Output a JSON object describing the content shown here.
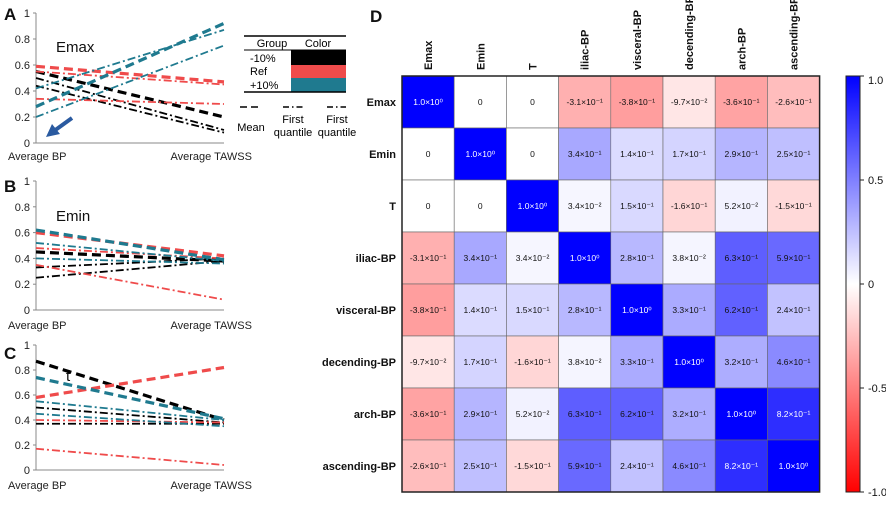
{
  "panel_labels": {
    "A": "A",
    "B": "B",
    "C": "C",
    "D": "D"
  },
  "line_x_labels": [
    "Average BP",
    "Average TAWSS"
  ],
  "line_y_ticks": [
    "0",
    "0.2",
    "0.4",
    "0.6",
    "0.8",
    "1"
  ],
  "legend": {
    "group_header": "Group",
    "color_header": "Color",
    "groups": [
      "-10%",
      "Ref",
      "+10%"
    ],
    "colors": [
      "#000000",
      "#ef4b4b",
      "#1f7a8f"
    ],
    "styles": [
      "Mean",
      "First quantile",
      "First quantile"
    ],
    "style_lines": [
      [
        "Mean"
      ],
      [
        "First",
        "quantile"
      ],
      [
        "First",
        "quantile"
      ]
    ]
  },
  "colors": {
    "black": "#000000",
    "red": "#ef4b4b",
    "teal": "#1f7a8f",
    "arrow": "#2a5aa0"
  },
  "chart_data": [
    {
      "type": "line",
      "panel": "A",
      "title": "Emax",
      "x": [
        "Average BP",
        "Average TAWSS"
      ],
      "ylim": [
        0,
        1
      ],
      "series": [
        {
          "name": "-10% mean",
          "group": "-10%",
          "style": "mean",
          "values": [
            0.55,
            0.2
          ]
        },
        {
          "name": "-10% q1",
          "group": "-10%",
          "style": "dashdot",
          "values": [
            0.5,
            0.1
          ]
        },
        {
          "name": "-10% q2",
          "group": "-10%",
          "style": "dashdot",
          "values": [
            0.44,
            0.08
          ]
        },
        {
          "name": "Ref mean",
          "group": "Ref",
          "style": "mean",
          "values": [
            0.59,
            0.47
          ]
        },
        {
          "name": "Ref q1",
          "group": "Ref",
          "style": "dashdot",
          "values": [
            0.55,
            0.45
          ]
        },
        {
          "name": "Ref q2",
          "group": "Ref",
          "style": "dashdot",
          "values": [
            0.34,
            0.3
          ]
        },
        {
          "name": "+10% mean",
          "group": "+10%",
          "style": "mean",
          "values": [
            0.28,
            0.92
          ]
        },
        {
          "name": "+10% q1",
          "group": "+10%",
          "style": "dashdot",
          "values": [
            0.42,
            0.87
          ]
        },
        {
          "name": "+10% q2",
          "group": "+10%",
          "style": "dashdot",
          "values": [
            0.2,
            0.75
          ]
        }
      ]
    },
    {
      "type": "line",
      "panel": "B",
      "title": "Emin",
      "x": [
        "Average BP",
        "Average TAWSS"
      ],
      "ylim": [
        0,
        1
      ],
      "series": [
        {
          "name": "-10% mean",
          "group": "-10%",
          "style": "mean",
          "values": [
            0.45,
            0.38
          ]
        },
        {
          "name": "-10% q1",
          "group": "-10%",
          "style": "dashdot",
          "values": [
            0.33,
            0.4
          ]
        },
        {
          "name": "-10% q2",
          "group": "-10%",
          "style": "dashdot",
          "values": [
            0.25,
            0.38
          ]
        },
        {
          "name": "Ref mean",
          "group": "Ref",
          "style": "mean",
          "values": [
            0.6,
            0.42
          ]
        },
        {
          "name": "Ref q1",
          "group": "Ref",
          "style": "dashdot",
          "values": [
            0.48,
            0.4
          ]
        },
        {
          "name": "Ref q2",
          "group": "Ref",
          "style": "dashdot",
          "values": [
            0.35,
            0.08
          ]
        },
        {
          "name": "+10% mean",
          "group": "+10%",
          "style": "mean",
          "values": [
            0.62,
            0.39
          ]
        },
        {
          "name": "+10% q1",
          "group": "+10%",
          "style": "dashdot",
          "values": [
            0.52,
            0.38
          ]
        },
        {
          "name": "+10% q2",
          "group": "+10%",
          "style": "dashdot",
          "values": [
            0.4,
            0.36
          ]
        }
      ]
    },
    {
      "type": "line",
      "panel": "C",
      "title": "t",
      "x": [
        "Average BP",
        "Average TAWSS"
      ],
      "ylim": [
        0,
        1
      ],
      "series": [
        {
          "name": "-10% mean",
          "group": "-10%",
          "style": "mean",
          "values": [
            0.87,
            0.4
          ]
        },
        {
          "name": "-10% q1",
          "group": "-10%",
          "style": "dashdot",
          "values": [
            0.5,
            0.38
          ]
        },
        {
          "name": "-10% q2",
          "group": "-10%",
          "style": "dashdot",
          "values": [
            0.37,
            0.37
          ]
        },
        {
          "name": "Ref mean",
          "group": "Ref",
          "style": "mean",
          "values": [
            0.58,
            0.82
          ]
        },
        {
          "name": "Ref q1",
          "group": "Ref",
          "style": "dashdot",
          "values": [
            0.4,
            0.38
          ]
        },
        {
          "name": "Ref q2",
          "group": "Ref",
          "style": "dashdot",
          "values": [
            0.17,
            0.04
          ]
        },
        {
          "name": "+10% mean",
          "group": "+10%",
          "style": "mean",
          "values": [
            0.74,
            0.41
          ]
        },
        {
          "name": "+10% q1",
          "group": "+10%",
          "style": "dashdot",
          "values": [
            0.55,
            0.4
          ]
        },
        {
          "name": "+10% q2",
          "group": "+10%",
          "style": "dashdot",
          "values": [
            0.45,
            0.35
          ]
        }
      ]
    },
    {
      "type": "heatmap",
      "panel": "D",
      "title": "",
      "rows": [
        "Emax",
        "Emin",
        "T",
        "iliac-BP",
        "visceral-BP",
        "decending-BP",
        "arch-BP",
        "ascending-BP"
      ],
      "columns": [
        "Emax",
        "Emin",
        "T",
        "iliac-BP",
        "visceral-BP",
        "decending-BP",
        "arch-BP",
        "ascending-BP"
      ],
      "values": [
        [
          1.0,
          0,
          0,
          -0.31,
          -0.38,
          -0.097,
          -0.36,
          -0.26
        ],
        [
          0,
          1.0,
          0,
          0.34,
          0.14,
          0.17,
          0.29,
          0.25
        ],
        [
          0,
          0,
          1.0,
          0.034,
          0.15,
          -0.16,
          0.052,
          -0.15
        ],
        [
          -0.31,
          0.34,
          0.034,
          1.0,
          0.28,
          0.038,
          0.63,
          0.59
        ],
        [
          -0.38,
          0.14,
          0.15,
          0.28,
          1.0,
          0.33,
          0.62,
          0.24
        ],
        [
          -0.097,
          0.17,
          -0.16,
          0.038,
          0.33,
          1.0,
          0.32,
          0.46
        ],
        [
          -0.36,
          0.29,
          0.052,
          0.63,
          0.62,
          0.32,
          1.0,
          0.82
        ],
        [
          -0.26,
          0.25,
          -0.15,
          0.59,
          0.24,
          0.46,
          0.82,
          1.0
        ]
      ],
      "labels": [
        [
          "1.0×10⁰",
          "0",
          "0",
          "-3.1×10⁻¹",
          "-3.8×10⁻¹",
          "-9.7×10⁻²",
          "-3.6×10⁻¹",
          "-2.6×10⁻¹"
        ],
        [
          "0",
          "1.0×10⁰",
          "0",
          "3.4×10⁻¹",
          "1.4×10⁻¹",
          "1.7×10⁻¹",
          "2.9×10⁻¹",
          "2.5×10⁻¹"
        ],
        [
          "0",
          "0",
          "1.0×10⁰",
          "3.4×10⁻²",
          "1.5×10⁻¹",
          "-1.6×10⁻¹",
          "5.2×10⁻²",
          "-1.5×10⁻¹"
        ],
        [
          "-3.1×10⁻¹",
          "3.4×10⁻¹",
          "3.4×10⁻²",
          "1.0×10⁰",
          "2.8×10⁻¹",
          "3.8×10⁻²",
          "6.3×10⁻¹",
          "5.9×10⁻¹"
        ],
        [
          "-3.8×10⁻¹",
          "1.4×10⁻¹",
          "1.5×10⁻¹",
          "2.8×10⁻¹",
          "1.0×10⁰",
          "3.3×10⁻¹",
          "6.2×10⁻¹",
          "2.4×10⁻¹"
        ],
        [
          "-9.7×10⁻²",
          "1.7×10⁻¹",
          "-1.6×10⁻¹",
          "3.8×10⁻²",
          "3.3×10⁻¹",
          "1.0×10⁰",
          "3.2×10⁻¹",
          "4.6×10⁻¹"
        ],
        [
          "-3.6×10⁻¹",
          "2.9×10⁻¹",
          "5.2×10⁻²",
          "6.3×10⁻¹",
          "6.2×10⁻¹",
          "3.2×10⁻¹",
          "1.0×10⁰",
          "8.2×10⁻¹"
        ],
        [
          "-2.6×10⁻¹",
          "2.5×10⁻¹",
          "-1.5×10⁻¹",
          "5.9×10⁻¹",
          "2.4×10⁻¹",
          "4.6×10⁻¹",
          "8.2×10⁻¹",
          "1.0×10⁰"
        ]
      ],
      "colorbar": {
        "range": [
          -1,
          1
        ],
        "ticks": [
          "1.0",
          "0.5",
          "0",
          "-0.5",
          "-1.0"
        ],
        "tick_values": [
          1,
          0.5,
          0,
          -0.5,
          -1
        ]
      }
    }
  ]
}
